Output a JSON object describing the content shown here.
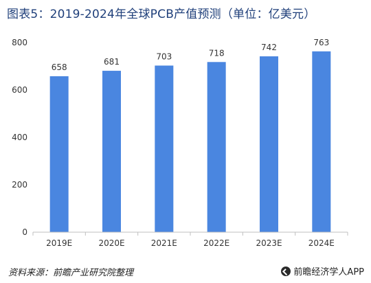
{
  "chart_data": {
    "type": "bar",
    "title": "图表5：2019-2024年全球PCB产值预测（单位：亿美元）",
    "categories": [
      "2019E",
      "2020E",
      "2021E",
      "2022E",
      "2023E",
      "2024E"
    ],
    "values": [
      658,
      681,
      703,
      718,
      742,
      763
    ],
    "data_labels": [
      "658",
      "681",
      "703",
      "718",
      "742",
      "763"
    ],
    "y_ticks": [
      "0",
      "200",
      "400",
      "600",
      "800"
    ],
    "y_tick_values": [
      0,
      200,
      400,
      600,
      800
    ],
    "ylim": [
      0,
      800
    ],
    "xlabel": "",
    "ylabel": "",
    "grid": false,
    "legend": "none",
    "bar_color": "#4a86e0"
  },
  "footer": {
    "source": "资料来源：前瞻产业研究院整理",
    "brand": "前瞻经济学人APP"
  }
}
